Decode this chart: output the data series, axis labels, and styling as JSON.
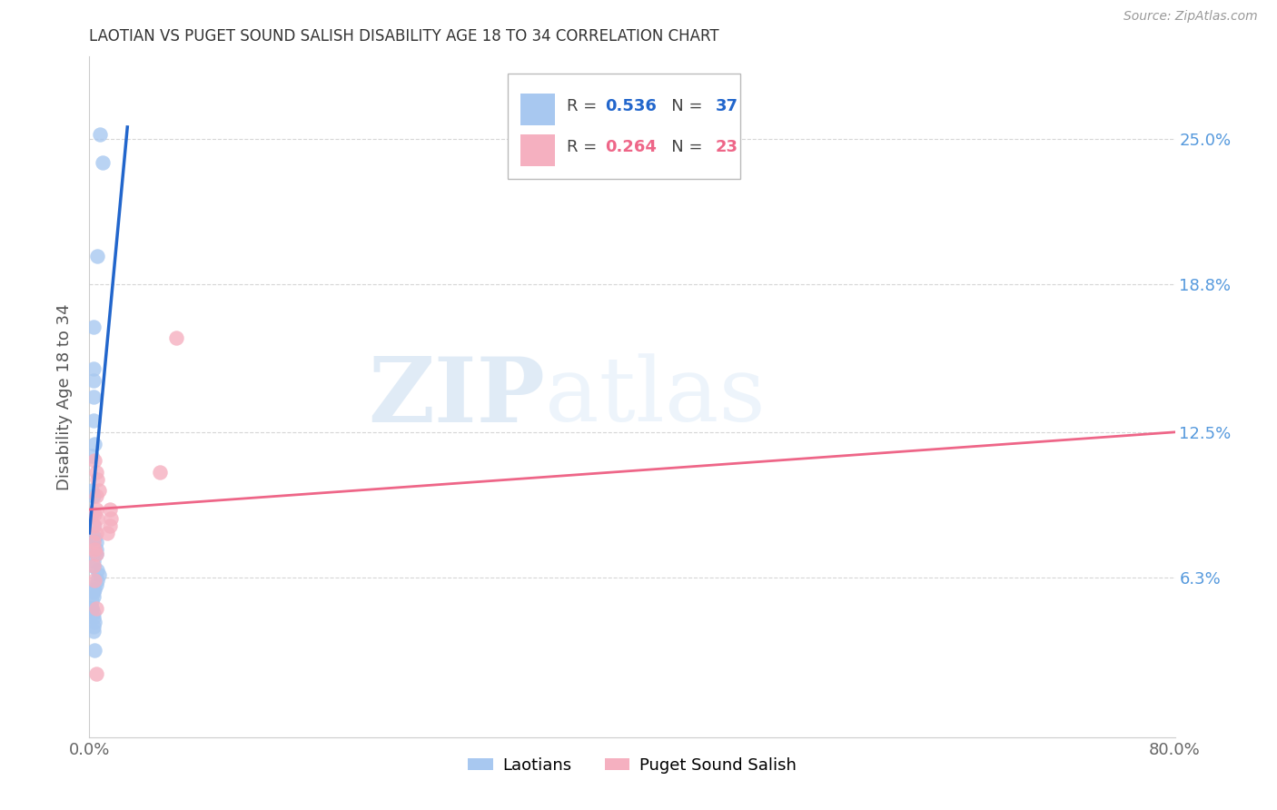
{
  "title": "LAOTIAN VS PUGET SOUND SALISH DISABILITY AGE 18 TO 34 CORRELATION CHART",
  "source": "Source: ZipAtlas.com",
  "ylabel": "Disability Age 18 to 34",
  "xlim": [
    0.0,
    0.8
  ],
  "ylim": [
    -0.005,
    0.285
  ],
  "xticks": [
    0.0,
    0.1,
    0.2,
    0.3,
    0.4,
    0.5,
    0.6,
    0.7,
    0.8
  ],
  "xticklabels": [
    "0.0%",
    "",
    "",
    "",
    "",
    "",
    "",
    "",
    "80.0%"
  ],
  "ytick_positions": [
    0.063,
    0.125,
    0.188,
    0.25
  ],
  "ytick_labels": [
    "6.3%",
    "12.5%",
    "18.8%",
    "25.0%"
  ],
  "blue_R": "0.536",
  "blue_N": "37",
  "pink_R": "0.264",
  "pink_N": "23",
  "blue_color": "#A8C8F0",
  "pink_color": "#F5B0C0",
  "blue_line_color": "#2266CC",
  "pink_line_color": "#EE6688",
  "blue_label": "Laotians",
  "pink_label": "Puget Sound Salish",
  "watermark_zip": "ZIP",
  "watermark_atlas": "atlas",
  "blue_x": [
    0.008,
    0.01,
    0.006,
    0.003,
    0.003,
    0.003,
    0.003,
    0.003,
    0.004,
    0.002,
    0.002,
    0.003,
    0.002,
    0.003,
    0.004,
    0.004,
    0.005,
    0.005,
    0.005,
    0.003,
    0.003,
    0.006,
    0.007,
    0.006,
    0.005,
    0.004,
    0.003,
    0.003,
    0.002,
    0.002,
    0.002,
    0.003,
    0.003,
    0.004,
    0.003,
    0.003,
    0.004
  ],
  "blue_y": [
    0.252,
    0.24,
    0.2,
    0.17,
    0.152,
    0.147,
    0.14,
    0.13,
    0.12,
    0.115,
    0.1,
    0.098,
    0.09,
    0.085,
    0.08,
    0.08,
    0.078,
    0.075,
    0.073,
    0.07,
    0.068,
    0.066,
    0.064,
    0.062,
    0.06,
    0.058,
    0.057,
    0.055,
    0.053,
    0.05,
    0.05,
    0.048,
    0.046,
    0.044,
    0.042,
    0.04,
    0.032
  ],
  "pink_x": [
    0.004,
    0.005,
    0.006,
    0.007,
    0.005,
    0.005,
    0.004,
    0.006,
    0.004,
    0.005,
    0.003,
    0.004,
    0.005,
    0.003,
    0.004,
    0.015,
    0.016,
    0.015,
    0.013,
    0.052,
    0.064,
    0.005,
    0.005
  ],
  "pink_y": [
    0.113,
    0.108,
    0.105,
    0.1,
    0.098,
    0.092,
    0.09,
    0.088,
    0.085,
    0.082,
    0.078,
    0.075,
    0.073,
    0.068,
    0.062,
    0.092,
    0.088,
    0.085,
    0.082,
    0.108,
    0.165,
    0.05,
    0.022
  ],
  "blue_trendline_x": [
    0.0,
    0.028
  ],
  "blue_trendline_y": [
    0.082,
    0.255
  ],
  "pink_trendline_x": [
    0.0,
    0.8
  ],
  "pink_trendline_y": [
    0.092,
    0.125
  ]
}
